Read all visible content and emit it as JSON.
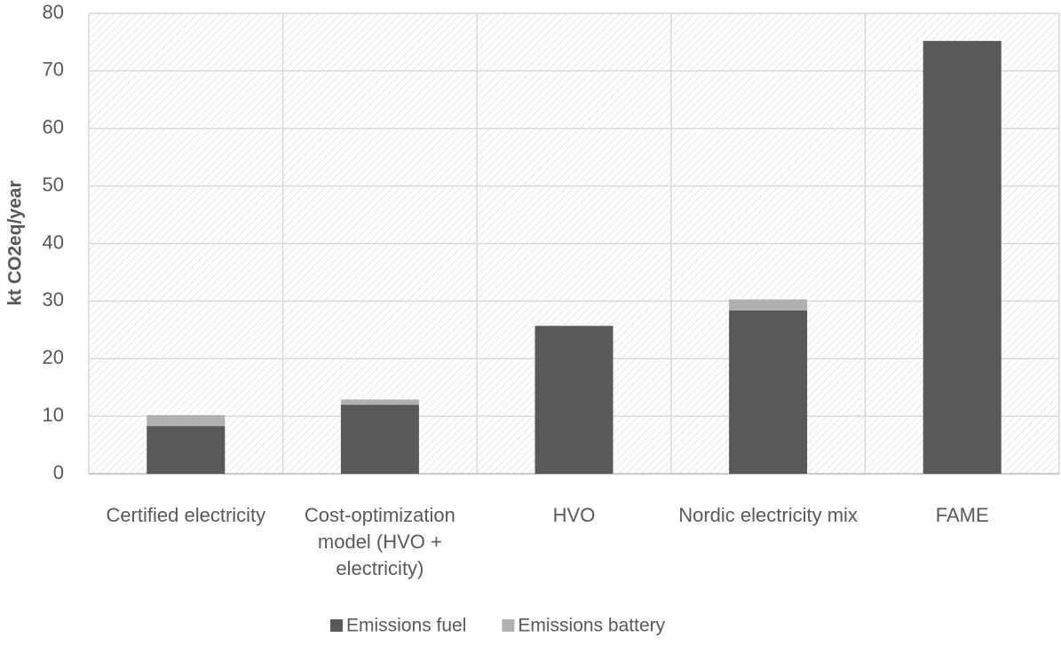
{
  "chart_data": {
    "type": "bar",
    "stacked": true,
    "y_label": "kt CO2eq/year",
    "categories": [
      "Certified electricity",
      "Cost-optimization model (HVO + electricity)",
      "HVO",
      "Nordic electricity mix",
      "FAME"
    ],
    "series": [
      {
        "name": "Emissions fuel",
        "color": "#595959",
        "values": [
          8.3,
          12.0,
          25.7,
          28.4,
          75.2
        ]
      },
      {
        "name": "Emissions battery",
        "color": "#b0b0b0",
        "values": [
          1.9,
          0.9,
          0,
          1.9,
          0
        ]
      }
    ],
    "ylim": [
      0,
      80
    ],
    "yticks": [
      0,
      10,
      20,
      30,
      40,
      50,
      60,
      70,
      80
    ],
    "grid": true,
    "legend": "bottom"
  }
}
